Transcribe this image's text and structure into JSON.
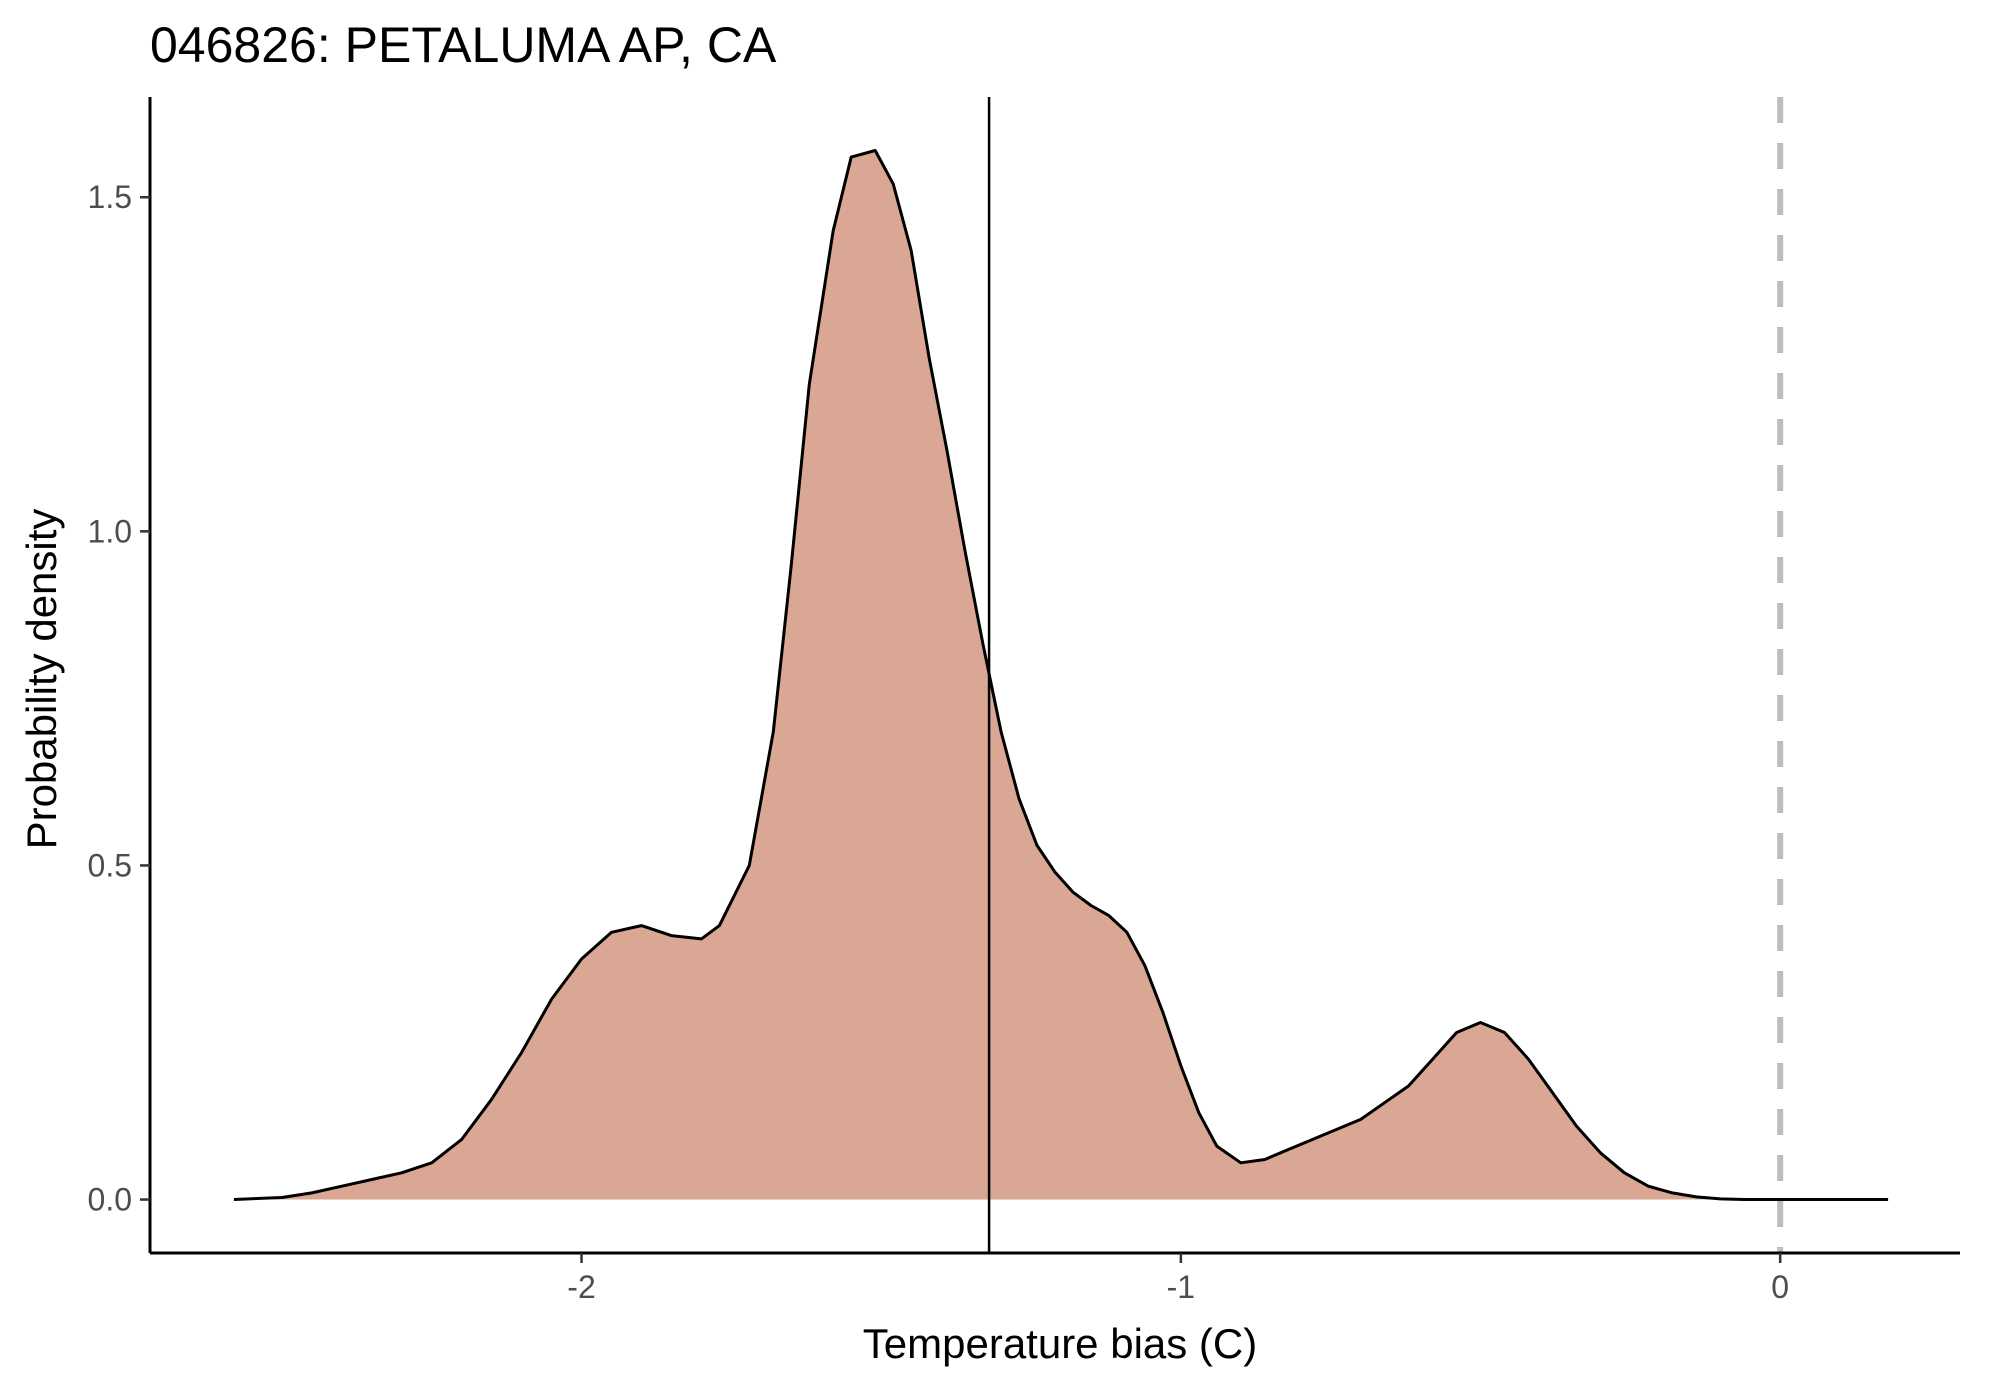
{
  "chart_data": {
    "type": "area",
    "title": "046826: PETALUMA AP, CA",
    "xlabel": "Temperature bias (C)",
    "ylabel": "Probability density",
    "xlim": [
      -2.72,
      0.3
    ],
    "ylim": [
      -0.08,
      1.65
    ],
    "x_ticks": [
      -2,
      -1,
      0
    ],
    "x_tick_labels": [
      "-2",
      "-1",
      "0"
    ],
    "y_ticks": [
      0.0,
      0.5,
      1.0,
      1.5
    ],
    "y_tick_labels": [
      "0.0",
      "0.5",
      "1.0",
      "1.5"
    ],
    "grid": false,
    "legend": "none",
    "fill_color": "#d9a794",
    "line_color": "#000000",
    "reference_lines": [
      {
        "x": -1.32,
        "style": "solid",
        "color": "#000000"
      },
      {
        "x": 0.0,
        "style": "dashed",
        "color": "#bebebe"
      }
    ],
    "series": [
      {
        "x": [
          -2.58,
          -2.5,
          -2.45,
          -2.4,
          -2.35,
          -2.3,
          -2.25,
          -2.2,
          -2.15,
          -2.1,
          -2.05,
          -2.0,
          -1.95,
          -1.9,
          -1.85,
          -1.8,
          -1.77,
          -1.72,
          -1.68,
          -1.65,
          -1.62,
          -1.58,
          -1.55,
          -1.51,
          -1.48,
          -1.45,
          -1.42,
          -1.39,
          -1.36,
          -1.33,
          -1.3,
          -1.27,
          -1.24,
          -1.21,
          -1.18,
          -1.15,
          -1.12,
          -1.09,
          -1.06,
          -1.03,
          -1.0,
          -0.97,
          -0.94,
          -0.9,
          -0.86,
          -0.82,
          -0.78,
          -0.74,
          -0.7,
          -0.66,
          -0.62,
          -0.58,
          -0.54,
          -0.5,
          -0.46,
          -0.42,
          -0.38,
          -0.34,
          -0.3,
          -0.26,
          -0.22,
          -0.18,
          -0.14,
          -0.1,
          -0.06,
          -0.02,
          0.02,
          0.06,
          0.1,
          0.14,
          0.18
        ],
        "y": [
          0.0,
          0.003,
          0.01,
          0.02,
          0.03,
          0.04,
          0.055,
          0.09,
          0.15,
          0.22,
          0.3,
          0.36,
          0.4,
          0.41,
          0.395,
          0.39,
          0.41,
          0.5,
          0.7,
          0.95,
          1.22,
          1.45,
          1.56,
          1.57,
          1.52,
          1.42,
          1.26,
          1.12,
          0.97,
          0.83,
          0.7,
          0.6,
          0.53,
          0.49,
          0.46,
          0.44,
          0.425,
          0.4,
          0.35,
          0.28,
          0.2,
          0.13,
          0.08,
          0.055,
          0.06,
          0.075,
          0.09,
          0.105,
          0.12,
          0.145,
          0.17,
          0.21,
          0.25,
          0.265,
          0.25,
          0.21,
          0.16,
          0.11,
          0.07,
          0.04,
          0.02,
          0.01,
          0.004,
          0.001,
          0.0,
          0.0,
          0.0,
          0.0,
          0.0,
          0.0,
          0.0
        ]
      }
    ]
  }
}
